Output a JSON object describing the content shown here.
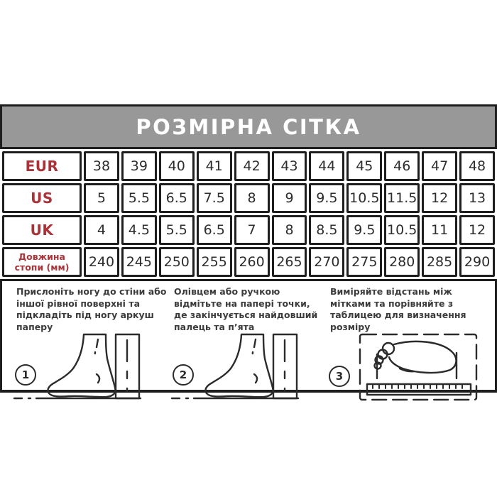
{
  "header": {
    "title": "РОЗМІРНА СІТКА"
  },
  "size_table": {
    "rows": [
      {
        "key": "eur",
        "label": "EUR",
        "values": [
          "38",
          "39",
          "40",
          "41",
          "42",
          "43",
          "44",
          "45",
          "46",
          "47",
          "48"
        ]
      },
      {
        "key": "us",
        "label": "US",
        "values": [
          "5",
          "5.5",
          "6.5",
          "7.5",
          "8",
          "9",
          "9.5",
          "10.5",
          "11.5",
          "12",
          "13"
        ]
      },
      {
        "key": "uk",
        "label": "UK",
        "values": [
          "4",
          "4.5",
          "5.5",
          "6.5",
          "7",
          "8",
          "8.5",
          "9.5",
          "10.5",
          "11",
          "12"
        ]
      },
      {
        "key": "foot-length",
        "label": "Довжина стопи (мм)",
        "values": [
          "240",
          "245",
          "250",
          "255",
          "260",
          "265",
          "270",
          "275",
          "280",
          "285",
          "290"
        ]
      }
    ]
  },
  "instructions": {
    "steps": [
      {
        "number": "1",
        "text": "Прислоніть ногу до стіни або іншої рівної поверхні та підкладіть під ногу аркуш паперу",
        "illustration": "foot-wall"
      },
      {
        "number": "2",
        "text": "Олівцем або ручкою відмітьте на папері точки, де закінчується найдовший палець та п’ята",
        "illustration": "foot-wall"
      },
      {
        "number": "3",
        "text": "Виміряйте відстань між мітками та порівняйте з таблицею для визначення розміру",
        "illustration": "foot-ruler"
      }
    ]
  },
  "colors": {
    "accent_red": "#a93338",
    "header_gray": "#989898",
    "border_dark": "#1e1e1e",
    "text_dark": "#2d2d2d",
    "header_text": "#ffffff"
  }
}
